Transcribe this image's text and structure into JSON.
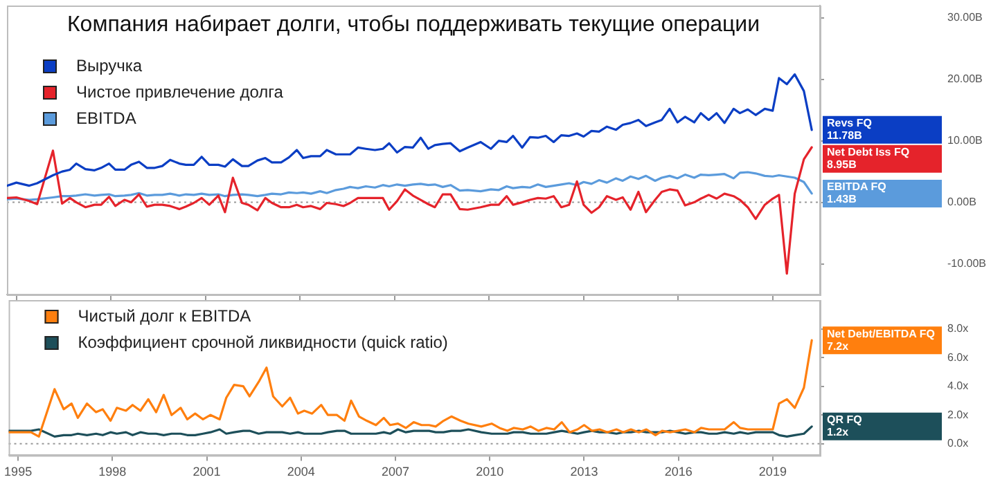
{
  "chart_data": [
    {
      "type": "line",
      "title": "Компания набирает долги, чтобы поддерживать текущие операции",
      "legend": "top left",
      "tick_labels": "y",
      "marker": "none",
      "line_style": "solid",
      "grid": false,
      "xlim": [
        1994.7,
        2020.5
      ],
      "xticks": [
        1995,
        1998,
        2001,
        2004,
        2007,
        2010,
        2013,
        2016,
        2019
      ],
      "ylim": [
        -15,
        32
      ],
      "yticks": [
        {
          "value": -10,
          "label": "-10.00B"
        },
        {
          "value": 0,
          "label": "0.00B"
        },
        {
          "value": 10,
          "label": "10.00B"
        },
        {
          "value": 20,
          "label": "20.00B"
        },
        {
          "value": 30,
          "label": "30.00B"
        }
      ],
      "ref_lines": [
        {
          "axis": "y",
          "value": 0,
          "label": null,
          "color": "#999999",
          "line_style": "dotted"
        }
      ],
      "x": [
        1994.71,
        1995.0,
        1995.41,
        1995.66,
        1996.16,
        1996.45,
        1996.7,
        1996.9,
        1997.19,
        1997.48,
        1997.69,
        1997.94,
        1998.14,
        1998.43,
        1998.64,
        1998.89,
        1999.14,
        1999.39,
        1999.63,
        1999.88,
        2000.17,
        2000.38,
        2000.63,
        2000.88,
        2001.12,
        2001.41,
        2001.62,
        2001.87,
        2002.16,
        2002.36,
        2002.65,
        2002.9,
        2003.11,
        2003.4,
        2003.65,
        2003.9,
        2004.1,
        2004.35,
        2004.64,
        2004.85,
        2005.14,
        2005.38,
        2005.59,
        2005.84,
        2006.09,
        2006.38,
        2006.63,
        2006.83,
        2007.08,
        2007.33,
        2007.58,
        2007.83,
        2008.07,
        2008.28,
        2008.53,
        2008.78,
        2009.07,
        2009.32,
        2009.73,
        2010.06,
        2010.31,
        2010.56,
        2010.76,
        2011.05,
        2011.3,
        2011.55,
        2011.8,
        2012.05,
        2012.29,
        2012.54,
        2012.79,
        2013.0,
        2013.25,
        2013.49,
        2013.74,
        2014.03,
        2014.24,
        2014.49,
        2014.74,
        2014.98,
        2015.27,
        2015.48,
        2015.73,
        2015.98,
        2016.22,
        2016.51,
        2016.72,
        2016.97,
        2017.22,
        2017.47,
        2017.76,
        2017.96,
        2018.21,
        2018.46,
        2018.75,
        2019.0,
        2019.2,
        2019.45,
        2019.7,
        2019.99,
        2020.24
      ],
      "series": [
        {
          "name": "Выручка",
          "color": "#0b3ec4",
          "values": [
            2.7,
            3.2,
            2.7,
            3.1,
            4.4,
            5.0,
            5.3,
            6.3,
            5.4,
            5.2,
            5.6,
            6.3,
            5.3,
            5.3,
            6.1,
            6.6,
            5.6,
            5.6,
            5.9,
            6.9,
            6.3,
            6.1,
            6.1,
            7.4,
            6.1,
            6.1,
            5.8,
            7.0,
            5.9,
            5.9,
            6.8,
            7.2,
            6.5,
            6.5,
            7.3,
            8.5,
            7.2,
            7.5,
            7.5,
            8.5,
            7.8,
            7.8,
            7.8,
            8.9,
            8.7,
            8.5,
            8.7,
            9.6,
            8.1,
            9.0,
            8.9,
            10.5,
            8.7,
            9.3,
            9.5,
            9.6,
            8.3,
            8.9,
            9.8,
            8.7,
            10.0,
            9.8,
            10.8,
            8.9,
            10.6,
            10.5,
            10.8,
            9.8,
            10.9,
            10.8,
            11.2,
            10.7,
            11.6,
            11.5,
            12.3,
            11.8,
            12.6,
            12.9,
            13.4,
            12.4,
            13.0,
            13.4,
            15.2,
            13.0,
            13.9,
            13.0,
            14.5,
            13.4,
            14.5,
            12.9,
            15.2,
            14.5,
            15.1,
            14.2,
            15.2,
            14.9,
            20.2,
            19.2,
            20.8,
            18.1,
            11.78
          ],
          "value_labels": [
            null,
            null,
            null,
            null,
            null,
            null,
            null,
            null,
            null,
            null,
            null,
            null,
            null,
            null,
            null,
            null,
            null,
            null,
            null,
            null,
            null,
            null,
            null,
            null,
            null,
            null,
            null,
            null,
            null,
            null,
            null,
            null,
            null,
            null,
            null,
            null,
            null,
            null,
            null,
            null,
            null,
            null,
            null,
            null,
            null,
            null,
            null,
            null,
            null,
            null,
            null,
            null,
            null,
            null,
            null,
            null,
            null,
            null,
            null,
            null,
            null,
            null,
            null,
            null,
            null,
            null,
            null,
            null,
            null,
            null,
            null,
            null,
            null,
            null,
            null,
            null,
            null,
            null,
            null,
            null,
            null,
            null,
            null,
            null,
            null,
            null,
            null,
            null,
            null,
            null,
            null,
            null,
            null,
            null,
            null,
            null,
            null,
            null,
            null,
            null,
            "Revs FQ\n11.78B"
          ]
        },
        {
          "name": "Чистое привлечение долга",
          "color": "#e5232b",
          "values": [
            0.7,
            0.8,
            0.2,
            -0.3,
            8.4,
            -0.2,
            0.7,
            0.0,
            -0.8,
            -0.4,
            -0.4,
            0.9,
            -0.6,
            0.4,
            0.0,
            1.3,
            -0.7,
            -0.4,
            -0.4,
            -0.6,
            -1.1,
            -0.7,
            -0.1,
            0.7,
            -0.4,
            1.1,
            -1.6,
            4.0,
            -0.1,
            -0.4,
            -1.3,
            0.7,
            -0.1,
            -0.8,
            -0.8,
            -0.4,
            -0.8,
            -0.6,
            -1.1,
            -0.1,
            -0.3,
            -0.6,
            -0.1,
            0.7,
            0.7,
            0.7,
            0.7,
            -1.2,
            0.2,
            2.1,
            1.1,
            0.4,
            -0.3,
            -0.8,
            1.3,
            1.3,
            -1.1,
            -1.2,
            -0.8,
            -0.4,
            -0.4,
            1.0,
            -0.4,
            0.0,
            0.4,
            0.7,
            0.6,
            1.0,
            -0.8,
            -0.4,
            3.4,
            -0.4,
            -1.7,
            -0.8,
            1.0,
            0.4,
            0.8,
            -1.2,
            1.7,
            -1.6,
            0.4,
            1.7,
            2.1,
            1.9,
            -0.5,
            0.0,
            0.6,
            1.2,
            0.6,
            1.4,
            1.0,
            0.4,
            -0.8,
            -2.7,
            -0.4,
            0.6,
            1.2,
            -11.6,
            1.4,
            7.0,
            8.95
          ],
          "value_labels": [
            null,
            null,
            null,
            null,
            null,
            null,
            null,
            null,
            null,
            null,
            null,
            null,
            null,
            null,
            null,
            null,
            null,
            null,
            null,
            null,
            null,
            null,
            null,
            null,
            null,
            null,
            null,
            null,
            null,
            null,
            null,
            null,
            null,
            null,
            null,
            null,
            null,
            null,
            null,
            null,
            null,
            null,
            null,
            null,
            null,
            null,
            null,
            null,
            null,
            null,
            null,
            null,
            null,
            null,
            null,
            null,
            null,
            null,
            null,
            null,
            null,
            null,
            null,
            null,
            null,
            null,
            null,
            null,
            null,
            null,
            null,
            null,
            null,
            null,
            null,
            null,
            null,
            null,
            null,
            null,
            null,
            null,
            null,
            null,
            null,
            null,
            null,
            null,
            null,
            null,
            null,
            null,
            null,
            null,
            null,
            null,
            null,
            null,
            null,
            null,
            "Net Debt Iss FQ\n8.95B"
          ]
        },
        {
          "name": "EBITDA",
          "color": "#5b9bdc",
          "values": [
            0.5,
            0.6,
            0.4,
            0.5,
            0.8,
            1.0,
            1.0,
            1.1,
            1.3,
            1.1,
            1.2,
            1.3,
            1.0,
            1.1,
            1.2,
            1.5,
            1.1,
            1.2,
            1.2,
            1.4,
            1.1,
            1.3,
            1.2,
            1.4,
            1.2,
            1.3,
            1.0,
            1.2,
            1.3,
            1.2,
            1.0,
            1.2,
            1.4,
            1.3,
            1.6,
            1.5,
            1.6,
            1.4,
            1.8,
            1.5,
            2.0,
            2.2,
            2.5,
            2.3,
            2.6,
            2.4,
            2.8,
            2.6,
            2.9,
            2.7,
            2.9,
            3.0,
            2.8,
            2.9,
            2.5,
            2.8,
            1.9,
            2.0,
            1.8,
            2.1,
            2.0,
            2.6,
            2.3,
            2.5,
            2.4,
            2.9,
            2.5,
            2.7,
            2.9,
            3.1,
            2.8,
            3.3,
            3.0,
            3.6,
            3.2,
            3.9,
            3.5,
            4.2,
            3.8,
            4.3,
            3.5,
            4.0,
            4.3,
            3.9,
            4.5,
            4.0,
            4.5,
            4.4,
            4.5,
            4.6,
            3.9,
            4.8,
            4.9,
            4.7,
            4.3,
            4.2,
            4.4,
            4.2,
            4.0,
            3.3,
            1.43
          ],
          "value_labels": [
            null,
            null,
            null,
            null,
            null,
            null,
            null,
            null,
            null,
            null,
            null,
            null,
            null,
            null,
            null,
            null,
            null,
            null,
            null,
            null,
            null,
            null,
            null,
            null,
            null,
            null,
            null,
            null,
            null,
            null,
            null,
            null,
            null,
            null,
            null,
            null,
            null,
            null,
            null,
            null,
            null,
            null,
            null,
            null,
            null,
            null,
            null,
            null,
            null,
            null,
            null,
            null,
            null,
            null,
            null,
            null,
            null,
            null,
            null,
            null,
            null,
            null,
            null,
            null,
            null,
            null,
            null,
            null,
            null,
            null,
            null,
            null,
            null,
            null,
            null,
            null,
            null,
            null,
            null,
            null,
            null,
            null,
            null,
            null,
            null,
            null,
            null,
            null,
            null,
            null,
            null,
            null,
            null,
            null,
            null,
            null,
            null,
            null,
            null,
            null,
            "EBITDA FQ\n1.43B"
          ]
        }
      ]
    },
    {
      "type": "line",
      "legend": "top left",
      "marker": "none",
      "line_style": "solid",
      "grid": false,
      "xlim": [
        1994.7,
        2020.5
      ],
      "xticks": [
        1995,
        1998,
        2001,
        2004,
        2007,
        2010,
        2013,
        2016,
        2019
      ],
      "ylim": [
        -0.8,
        10
      ],
      "yticks": [
        {
          "value": 0,
          "label": "0.0x"
        },
        {
          "value": 2,
          "label": "2.0x"
        },
        {
          "value": 4,
          "label": "4.0x"
        },
        {
          "value": 6,
          "label": "6.0x"
        },
        {
          "value": 8,
          "label": "8.0x"
        }
      ],
      "ref_lines": [
        {
          "axis": "y",
          "value": 0,
          "label": null,
          "color": "#999999",
          "line_style": "dotted"
        }
      ],
      "x": [
        1994.71,
        1995.0,
        1995.41,
        1995.66,
        1996.16,
        1996.45,
        1996.7,
        1996.9,
        1997.19,
        1997.48,
        1997.69,
        1997.94,
        1998.14,
        1998.43,
        1998.64,
        1998.89,
        1999.14,
        1999.39,
        1999.63,
        1999.88,
        2000.17,
        2000.38,
        2000.63,
        2000.88,
        2001.12,
        2001.41,
        2001.62,
        2001.87,
        2002.16,
        2002.36,
        2002.65,
        2002.9,
        2003.11,
        2003.4,
        2003.65,
        2003.9,
        2004.1,
        2004.35,
        2004.64,
        2004.85,
        2005.14,
        2005.38,
        2005.59,
        2005.84,
        2006.09,
        2006.38,
        2006.63,
        2006.83,
        2007.08,
        2007.33,
        2007.58,
        2007.83,
        2008.07,
        2008.28,
        2008.53,
        2008.78,
        2009.07,
        2009.32,
        2009.73,
        2010.06,
        2010.31,
        2010.56,
        2010.76,
        2011.05,
        2011.3,
        2011.55,
        2011.8,
        2012.05,
        2012.29,
        2012.54,
        2012.79,
        2013.0,
        2013.25,
        2013.49,
        2013.74,
        2014.03,
        2014.24,
        2014.49,
        2014.74,
        2014.98,
        2015.27,
        2015.48,
        2015.73,
        2015.98,
        2016.22,
        2016.51,
        2016.72,
        2016.97,
        2017.22,
        2017.47,
        2017.76,
        2017.96,
        2018.21,
        2018.46,
        2018.75,
        2019.0,
        2019.2,
        2019.45,
        2019.7,
        2019.99,
        2020.24
      ],
      "series": [
        {
          "name": "Чистый долг к EBITDA",
          "color": "#ff7f0e",
          "values": [
            0.8,
            0.8,
            0.8,
            0.5,
            3.8,
            2.4,
            2.8,
            1.8,
            2.8,
            2.2,
            2.4,
            1.6,
            2.5,
            2.3,
            2.7,
            2.3,
            3.1,
            2.2,
            3.4,
            2.0,
            2.5,
            1.7,
            2.1,
            1.7,
            2.0,
            1.7,
            3.2,
            4.1,
            4.0,
            3.3,
            4.3,
            5.3,
            3.3,
            2.6,
            3.2,
            2.1,
            2.3,
            2.1,
            2.7,
            2.0,
            2.0,
            1.6,
            3.0,
            1.9,
            1.6,
            1.3,
            1.8,
            1.3,
            1.4,
            1.1,
            1.5,
            1.3,
            1.3,
            1.2,
            1.6,
            1.9,
            1.6,
            1.4,
            1.2,
            1.4,
            1.1,
            0.9,
            1.1,
            1.0,
            1.2,
            0.9,
            1.1,
            1.0,
            1.5,
            0.8,
            1.0,
            1.3,
            0.9,
            1.0,
            0.8,
            1.0,
            0.8,
            1.0,
            0.8,
            1.0,
            0.6,
            0.9,
            0.8,
            0.9,
            1.0,
            0.8,
            1.1,
            1.0,
            1.0,
            1.0,
            1.5,
            1.1,
            1.0,
            1.0,
            1.0,
            1.0,
            2.8,
            3.1,
            2.5,
            3.9,
            7.2
          ],
          "value_labels": [
            null,
            null,
            null,
            null,
            null,
            null,
            null,
            null,
            null,
            null,
            null,
            null,
            null,
            null,
            null,
            null,
            null,
            null,
            null,
            null,
            null,
            null,
            null,
            null,
            null,
            null,
            null,
            null,
            null,
            null,
            null,
            null,
            null,
            null,
            null,
            null,
            null,
            null,
            null,
            null,
            null,
            null,
            null,
            null,
            null,
            null,
            null,
            null,
            null,
            null,
            null,
            null,
            null,
            null,
            null,
            null,
            null,
            null,
            null,
            null,
            null,
            null,
            null,
            null,
            null,
            null,
            null,
            null,
            null,
            null,
            null,
            null,
            null,
            null,
            null,
            null,
            null,
            null,
            null,
            null,
            null,
            null,
            null,
            null,
            null,
            null,
            null,
            null,
            null,
            null,
            null,
            null,
            null,
            null,
            null,
            null,
            null,
            null,
            null,
            null,
            "Net Debt/EBITDA FQ\n7.2x"
          ]
        },
        {
          "name": "Коэффициент срочной ликвидности (quick ratio)",
          "color": "#1d4f5a",
          "values": [
            0.9,
            0.9,
            0.9,
            1.0,
            0.5,
            0.6,
            0.6,
            0.7,
            0.6,
            0.7,
            0.6,
            0.8,
            0.7,
            0.8,
            0.6,
            0.8,
            0.7,
            0.7,
            0.6,
            0.7,
            0.7,
            0.6,
            0.6,
            0.7,
            0.8,
            1.0,
            0.7,
            0.8,
            0.9,
            0.9,
            0.7,
            0.8,
            0.8,
            0.8,
            0.7,
            0.8,
            0.7,
            0.7,
            0.7,
            0.8,
            0.9,
            0.9,
            0.7,
            0.7,
            0.7,
            0.7,
            0.8,
            0.7,
            1.0,
            0.8,
            0.9,
            0.9,
            0.9,
            0.8,
            0.8,
            0.9,
            0.9,
            1.0,
            0.8,
            0.7,
            0.7,
            0.7,
            0.8,
            0.8,
            0.7,
            0.7,
            0.7,
            0.8,
            0.9,
            0.8,
            0.7,
            0.8,
            0.9,
            0.8,
            0.8,
            0.7,
            0.8,
            0.8,
            0.9,
            0.8,
            0.8,
            0.8,
            0.9,
            0.8,
            0.7,
            0.8,
            0.8,
            0.7,
            0.7,
            0.8,
            0.7,
            0.8,
            0.7,
            0.8,
            0.8,
            0.8,
            0.6,
            0.5,
            0.6,
            0.7,
            1.2
          ],
          "value_labels": [
            null,
            null,
            null,
            null,
            null,
            null,
            null,
            null,
            null,
            null,
            null,
            null,
            null,
            null,
            null,
            null,
            null,
            null,
            null,
            null,
            null,
            null,
            null,
            null,
            null,
            null,
            null,
            null,
            null,
            null,
            null,
            null,
            null,
            null,
            null,
            null,
            null,
            null,
            null,
            null,
            null,
            null,
            null,
            null,
            null,
            null,
            null,
            null,
            null,
            null,
            null,
            null,
            null,
            null,
            null,
            null,
            null,
            null,
            null,
            null,
            null,
            null,
            null,
            null,
            null,
            null,
            null,
            null,
            null,
            null,
            null,
            null,
            null,
            null,
            null,
            null,
            null,
            null,
            null,
            null,
            null,
            null,
            null,
            null,
            null,
            null,
            null,
            null,
            null,
            null,
            null,
            null,
            null,
            null,
            null,
            null,
            null,
            null,
            null,
            null,
            "QR FQ\n1.2x"
          ]
        }
      ]
    }
  ]
}
